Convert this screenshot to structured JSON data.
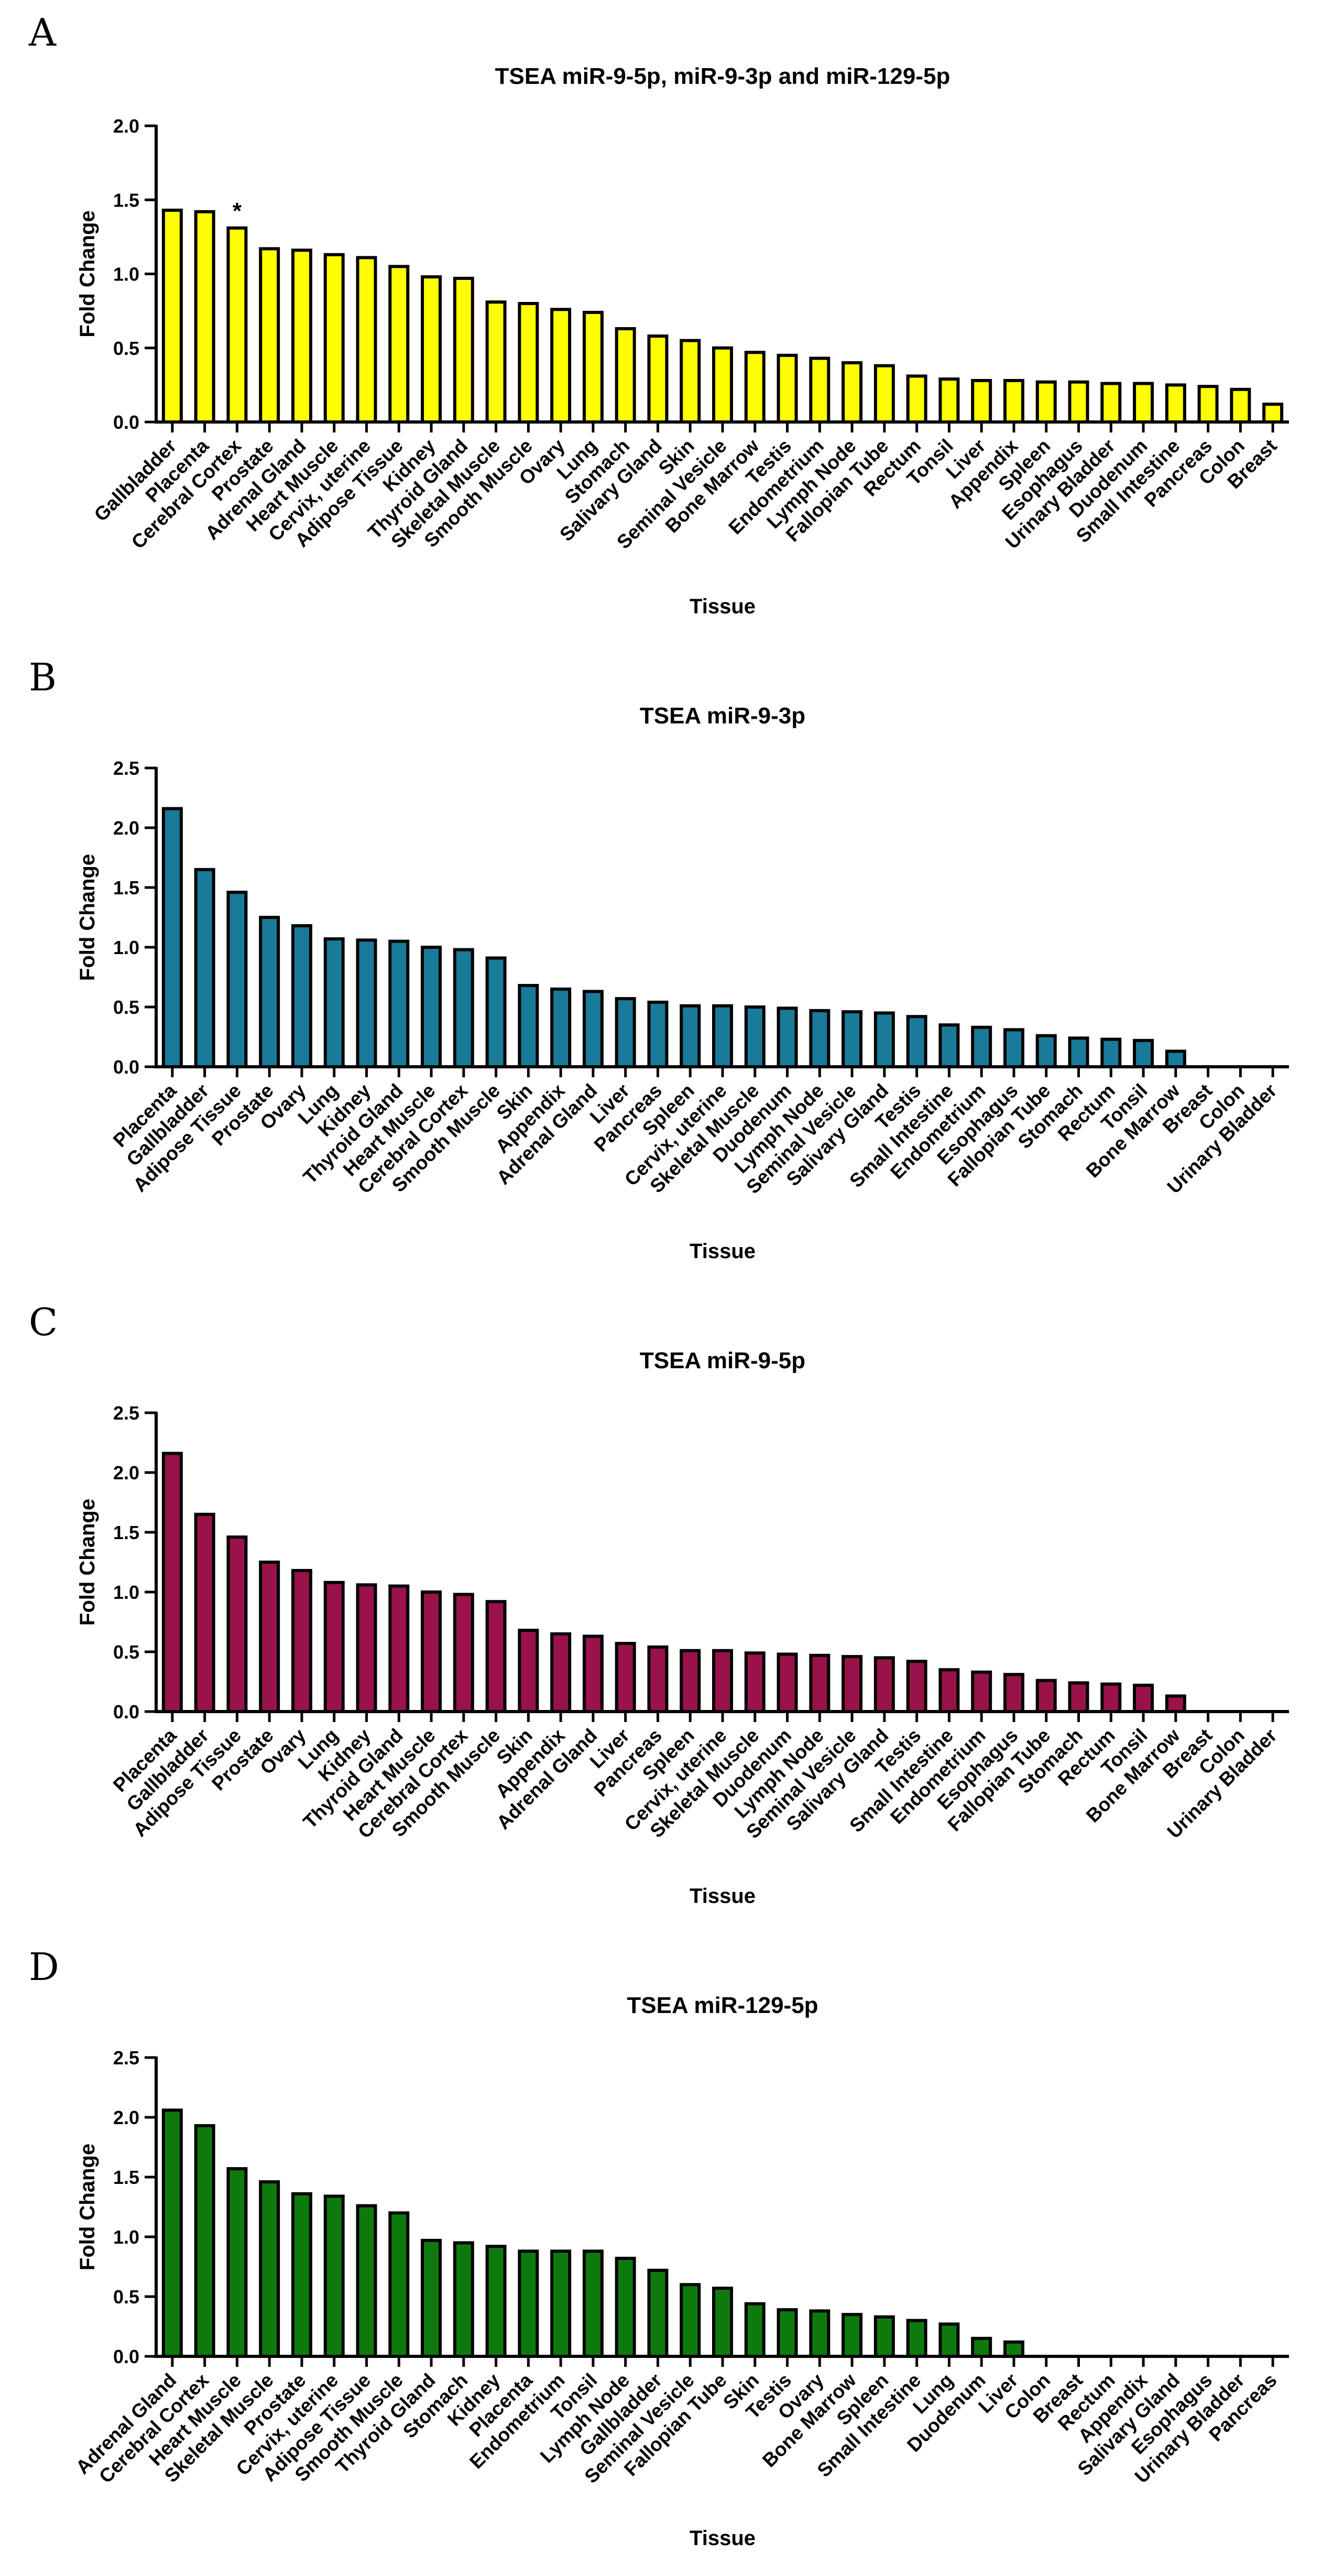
{
  "chart_data": [
    {
      "panel": "A",
      "type": "bar",
      "title": "TSEA miR-9-5p, miR-9-3p and miR-129-5p",
      "xlabel": "Tissue",
      "ylabel": "Fold Change",
      "ylim": [
        0,
        2.0
      ],
      "yticks": [
        "0.0",
        "0.5",
        "1.0",
        "1.5",
        "2.0"
      ],
      "bar_color": "#FFFF00",
      "categories": [
        "Gallbladder",
        "Placenta",
        "Cerebral Cortex",
        "Prostate",
        "Adrenal Gland",
        "Heart Muscle",
        "Cervix, uterine",
        "Adipose Tissue",
        "Kidney",
        "Thyroid Gland",
        "Skeletal Muscle",
        "Smooth Muscle",
        "Ovary",
        "Lung",
        "Stomach",
        "Salivary Gland",
        "Skin",
        "Seminal Vesicle",
        "Bone Marrow",
        "Testis",
        "Endometrium",
        "Lymph Node",
        "Fallopian Tube",
        "Rectum",
        "Tonsil",
        "Liver",
        "Appendix",
        "Spleen",
        "Esophagus",
        "Urinary Bladder",
        "Duodenum",
        "Small Intestine",
        "Pancreas",
        "Colon",
        "Breast"
      ],
      "values": [
        1.43,
        1.42,
        1.31,
        1.17,
        1.16,
        1.13,
        1.11,
        1.05,
        0.98,
        0.97,
        0.81,
        0.8,
        0.76,
        0.74,
        0.63,
        0.58,
        0.55,
        0.5,
        0.47,
        0.45,
        0.43,
        0.4,
        0.38,
        0.31,
        0.29,
        0.28,
        0.28,
        0.27,
        0.27,
        0.26,
        0.26,
        0.25,
        0.24,
        0.22,
        0.12
      ],
      "annotations": [
        {
          "category": "Cerebral Cortex",
          "text": "*"
        }
      ]
    },
    {
      "panel": "B",
      "type": "bar",
      "title": "TSEA miR-9-3p",
      "xlabel": "Tissue",
      "ylabel": "Fold Change",
      "ylim": [
        0,
        2.5
      ],
      "yticks": [
        "0.0",
        "0.5",
        "1.0",
        "1.5",
        "2.0",
        "2.5"
      ],
      "bar_color": "#1A7A99",
      "categories": [
        "Placenta",
        "Gallbladder",
        "Adipose Tissue",
        "Prostate",
        "Ovary",
        "Lung",
        "Kidney",
        "Thyroid Gland",
        "Heart Muscle",
        "Cerebral Cortex",
        "Smooth Muscle",
        "Skin",
        "Appendix",
        "Adrenal Gland",
        "Liver",
        "Pancreas",
        "Spleen",
        "Cervix, uterine",
        "Skeletal Muscle",
        "Duodenum",
        "Lymph Node",
        "Seminal Vesicle",
        "Salivary Gland",
        "Testis",
        "Small Intestine",
        "Endometrium",
        "Esophagus",
        "Fallopian Tube",
        "Stomach",
        "Rectum",
        "Tonsil",
        "Bone Marrow",
        "Breast",
        "Colon",
        "Urinary Bladder"
      ],
      "values": [
        2.16,
        1.65,
        1.46,
        1.25,
        1.18,
        1.07,
        1.06,
        1.05,
        1.0,
        0.98,
        0.91,
        0.68,
        0.65,
        0.63,
        0.57,
        0.54,
        0.51,
        0.51,
        0.5,
        0.49,
        0.47,
        0.46,
        0.45,
        0.42,
        0.35,
        0.33,
        0.31,
        0.26,
        0.24,
        0.23,
        0.22,
        0.13,
        0.0,
        0.0,
        0.0
      ]
    },
    {
      "panel": "C",
      "type": "bar",
      "title": "TSEA miR-9-5p",
      "xlabel": "Tissue",
      "ylabel": "Fold Change",
      "ylim": [
        0,
        2.5
      ],
      "yticks": [
        "0.0",
        "0.5",
        "1.0",
        "1.5",
        "2.0",
        "2.5"
      ],
      "bar_color": "#99124A",
      "categories": [
        "Placenta",
        "Gallbladder",
        "Adipose Tissue",
        "Prostate",
        "Ovary",
        "Lung",
        "Kidney",
        "Thyroid Gland",
        "Heart Muscle",
        "Cerebral Cortex",
        "Smooth Muscle",
        "Skin",
        "Appendix",
        "Adrenal Gland",
        "Liver",
        "Pancreas",
        "Spleen",
        "Cervix, uterine",
        "Skeletal Muscle",
        "Duodenum",
        "Lymph Node",
        "Seminal Vesicle",
        "Salivary Gland",
        "Testis",
        "Small Intestine",
        "Endometrium",
        "Esophagus",
        "Fallopian Tube",
        "Stomach",
        "Rectum",
        "Tonsil",
        "Bone Marrow",
        "Breast",
        "Colon",
        "Urinary Bladder"
      ],
      "values": [
        2.16,
        1.65,
        1.46,
        1.25,
        1.18,
        1.08,
        1.06,
        1.05,
        1.0,
        0.98,
        0.92,
        0.68,
        0.65,
        0.63,
        0.57,
        0.54,
        0.51,
        0.51,
        0.49,
        0.48,
        0.47,
        0.46,
        0.45,
        0.42,
        0.35,
        0.33,
        0.31,
        0.26,
        0.24,
        0.23,
        0.22,
        0.13,
        0.0,
        0.0,
        0.0
      ]
    },
    {
      "panel": "D",
      "type": "bar",
      "title": "TSEA miR-129-5p",
      "xlabel": "Tissue",
      "ylabel": "Fold Change",
      "ylim": [
        0,
        2.5
      ],
      "yticks": [
        "0.0",
        "0.5",
        "1.0",
        "1.5",
        "2.0",
        "2.5"
      ],
      "bar_color": "#0E7A0E",
      "categories": [
        "Adrenal Gland",
        "Cerebral Cortex",
        "Heart Muscle",
        "Skeletal Muscle",
        "Prostate",
        "Cervix, uterine",
        "Adipose Tissue",
        "Smooth Muscle",
        "Thyroid Gland",
        "Stomach",
        "Kidney",
        "Placenta",
        "Endometrium",
        "Tonsil",
        "Lymph Node",
        "Gallbladder",
        "Seminal Vesicle",
        "Fallopian Tube",
        "Skin",
        "Testis",
        "Ovary",
        "Bone Marrow",
        "Spleen",
        "Small Intestine",
        "Lung",
        "Duodenum",
        "Liver",
        "Colon",
        "Breast",
        "Rectum",
        "Appendix",
        "Salivary Gland",
        "Esophagus",
        "Urinary Bladder",
        "Pancreas"
      ],
      "values": [
        2.06,
        1.93,
        1.57,
        1.46,
        1.36,
        1.34,
        1.26,
        1.2,
        0.97,
        0.95,
        0.92,
        0.88,
        0.88,
        0.88,
        0.82,
        0.72,
        0.6,
        0.57,
        0.44,
        0.39,
        0.38,
        0.35,
        0.33,
        0.3,
        0.27,
        0.15,
        0.12,
        0.0,
        0.0,
        0.0,
        0.0,
        0.0,
        0.0,
        0.0,
        0.0
      ]
    }
  ]
}
